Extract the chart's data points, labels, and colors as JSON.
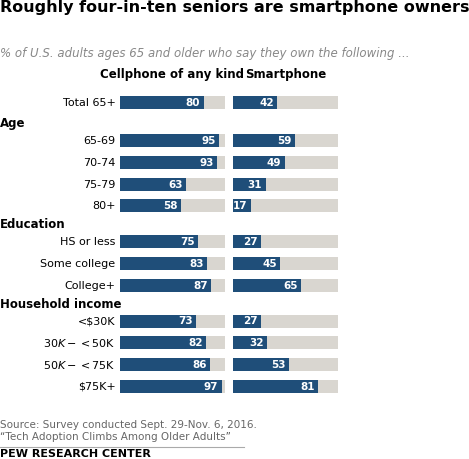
{
  "title": "Roughly four-in-ten seniors are smartphone owners",
  "subtitle": "% of U.S. adults ages 65 and older who say they own the following ...",
  "col1_header": "Cellphone of any kind",
  "col2_header": "Smartphone",
  "rows": [
    {
      "label": "Total 65+",
      "type": "data",
      "cv": 80,
      "sv": 42
    },
    {
      "label": "Age",
      "type": "section",
      "cv": null,
      "sv": null
    },
    {
      "label": "65-69",
      "type": "data",
      "cv": 95,
      "sv": 59
    },
    {
      "label": "70-74",
      "type": "data",
      "cv": 93,
      "sv": 49
    },
    {
      "label": "75-79",
      "type": "data",
      "cv": 63,
      "sv": 31
    },
    {
      "label": "80+",
      "type": "data",
      "cv": 58,
      "sv": 17
    },
    {
      "label": "Education",
      "type": "section",
      "cv": null,
      "sv": null
    },
    {
      "label": "HS or less",
      "type": "data",
      "cv": 75,
      "sv": 27
    },
    {
      "label": "Some college",
      "type": "data",
      "cv": 83,
      "sv": 45
    },
    {
      "label": "College+",
      "type": "data",
      "cv": 87,
      "sv": 65
    },
    {
      "label": "Household income",
      "type": "section",
      "cv": null,
      "sv": null
    },
    {
      "label": "<$30K",
      "type": "data",
      "cv": 73,
      "sv": 27
    },
    {
      "label": "$30K-<$50K",
      "type": "data",
      "cv": 82,
      "sv": 32
    },
    {
      "label": "$50K-<$75K",
      "type": "data",
      "cv": 86,
      "sv": 53
    },
    {
      "label": "$75K+",
      "type": "data",
      "cv": 97,
      "sv": 81
    }
  ],
  "bar_color": "#1f4e79",
  "bg_bar_color": "#d9d6d0",
  "bar_max": 100,
  "source_text": "Source: Survey conducted Sept. 29-Nov. 6, 2016.\n“Tech Adoption Climbs Among Older Adults”",
  "footer_text": "PEW RESEARCH CENTER",
  "title_fontsize": 11.5,
  "subtitle_fontsize": 8.5,
  "label_fontsize": 8,
  "value_fontsize": 7.5,
  "header_fontsize": 8.5,
  "section_fontsize": 8.5,
  "source_fontsize": 7.5,
  "footer_fontsize": 8
}
